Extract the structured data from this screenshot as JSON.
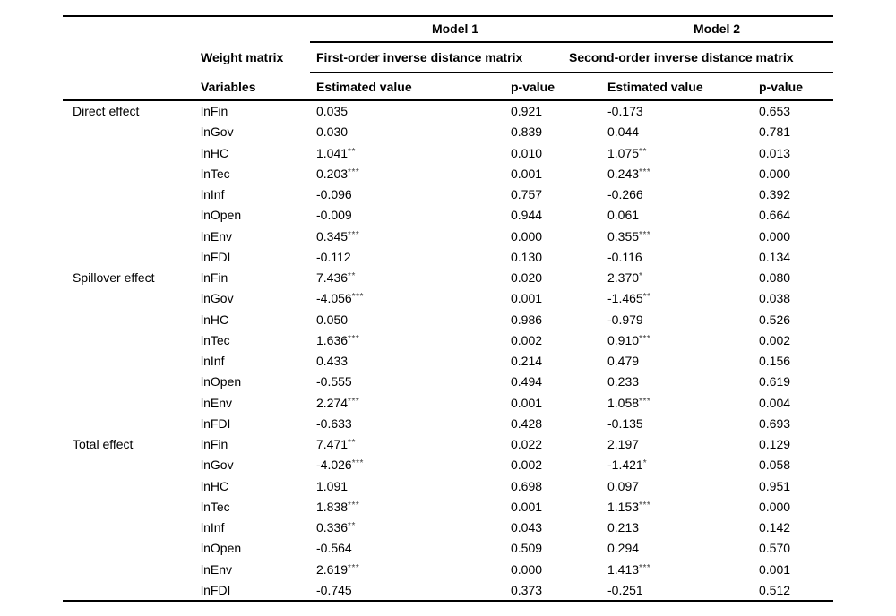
{
  "header": {
    "model1": "Model 1",
    "model2": "Model 2",
    "weight_matrix_label": "Weight matrix",
    "model1_matrix": "First-order inverse distance matrix",
    "model2_matrix": "Second-order inverse distance matrix",
    "variables_label": "Variables",
    "estimated_value_label_1": "Estimated value",
    "p_value_label_1": "p-value",
    "estimated_value_label_2": "Estimated value",
    "p_value_label_2": "p-value"
  },
  "colors": {
    "text": "#000000",
    "rule": "#000000",
    "background": "#ffffff"
  },
  "table": {
    "groups": [
      {
        "effect": "Direct effect",
        "rows": [
          {
            "variable": "lnFin",
            "m1_est": "0.035",
            "m1_stars": "",
            "m1_p": "0.921",
            "m2_est": "-0.173",
            "m2_stars": "",
            "m2_p": "0.653"
          },
          {
            "variable": "lnGov",
            "m1_est": "0.030",
            "m1_stars": "",
            "m1_p": "0.839",
            "m2_est": "0.044",
            "m2_stars": "",
            "m2_p": "0.781"
          },
          {
            "variable": "lnHC",
            "m1_est": "1.041",
            "m1_stars": "**",
            "m1_p": "0.010",
            "m2_est": "1.075",
            "m2_stars": "**",
            "m2_p": "0.013"
          },
          {
            "variable": "lnTec",
            "m1_est": "0.203",
            "m1_stars": "***",
            "m1_p": "0.001",
            "m2_est": "0.243",
            "m2_stars": "***",
            "m2_p": "0.000"
          },
          {
            "variable": "lnInf",
            "m1_est": "-0.096",
            "m1_stars": "",
            "m1_p": "0.757",
            "m2_est": "-0.266",
            "m2_stars": "",
            "m2_p": "0.392"
          },
          {
            "variable": "lnOpen",
            "m1_est": "-0.009",
            "m1_stars": "",
            "m1_p": "0.944",
            "m2_est": "0.061",
            "m2_stars": "",
            "m2_p": "0.664"
          },
          {
            "variable": "lnEnv",
            "m1_est": "0.345",
            "m1_stars": "***",
            "m1_p": "0.000",
            "m2_est": "0.355",
            "m2_stars": "***",
            "m2_p": "0.000"
          },
          {
            "variable": "lnFDI",
            "m1_est": "-0.112",
            "m1_stars": "",
            "m1_p": "0.130",
            "m2_est": "-0.116",
            "m2_stars": "",
            "m2_p": "0.134"
          }
        ]
      },
      {
        "effect": "Spillover effect",
        "rows": [
          {
            "variable": "lnFin",
            "m1_est": "7.436",
            "m1_stars": "**",
            "m1_p": "0.020",
            "m2_est": "2.370",
            "m2_stars": "*",
            "m2_p": "0.080"
          },
          {
            "variable": "lnGov",
            "m1_est": "-4.056",
            "m1_stars": "***",
            "m1_p": "0.001",
            "m2_est": "-1.465",
            "m2_stars": "**",
            "m2_p": "0.038"
          },
          {
            "variable": "lnHC",
            "m1_est": "0.050",
            "m1_stars": "",
            "m1_p": "0.986",
            "m2_est": "-0.979",
            "m2_stars": "",
            "m2_p": "0.526"
          },
          {
            "variable": "lnTec",
            "m1_est": "1.636",
            "m1_stars": "***",
            "m1_p": "0.002",
            "m2_est": "0.910",
            "m2_stars": "***",
            "m2_p": "0.002"
          },
          {
            "variable": "lnInf",
            "m1_est": "0.433",
            "m1_stars": "",
            "m1_p": "0.214",
            "m2_est": "0.479",
            "m2_stars": "",
            "m2_p": "0.156"
          },
          {
            "variable": "lnOpen",
            "m1_est": "-0.555",
            "m1_stars": "",
            "m1_p": "0.494",
            "m2_est": "0.233",
            "m2_stars": "",
            "m2_p": "0.619"
          },
          {
            "variable": "lnEnv",
            "m1_est": "2.274",
            "m1_stars": "***",
            "m1_p": "0.001",
            "m2_est": "1.058",
            "m2_stars": "***",
            "m2_p": "0.004"
          },
          {
            "variable": "lnFDI",
            "m1_est": "-0.633",
            "m1_stars": "",
            "m1_p": "0.428",
            "m2_est": "-0.135",
            "m2_stars": "",
            "m2_p": "0.693"
          }
        ]
      },
      {
        "effect": "Total effect",
        "rows": [
          {
            "variable": "lnFin",
            "m1_est": "7.471",
            "m1_stars": "**",
            "m1_p": "0.022",
            "m2_est": "2.197",
            "m2_stars": "",
            "m2_p": "0.129"
          },
          {
            "variable": "lnGov",
            "m1_est": "-4.026",
            "m1_stars": "***",
            "m1_p": "0.002",
            "m2_est": "-1.421",
            "m2_stars": "*",
            "m2_p": "0.058"
          },
          {
            "variable": "lnHC",
            "m1_est": "1.091",
            "m1_stars": "",
            "m1_p": "0.698",
            "m2_est": "0.097",
            "m2_stars": "",
            "m2_p": "0.951"
          },
          {
            "variable": "lnTec",
            "m1_est": "1.838",
            "m1_stars": "***",
            "m1_p": "0.001",
            "m2_est": "1.153",
            "m2_stars": "***",
            "m2_p": "0.000"
          },
          {
            "variable": "lnInf",
            "m1_est": "0.336",
            "m1_stars": "**",
            "m1_p": "0.043",
            "m2_est": "0.213",
            "m2_stars": "",
            "m2_p": "0.142"
          },
          {
            "variable": "lnOpen",
            "m1_est": "-0.564",
            "m1_stars": "",
            "m1_p": "0.509",
            "m2_est": "0.294",
            "m2_stars": "",
            "m2_p": "0.570"
          },
          {
            "variable": "lnEnv",
            "m1_est": "2.619",
            "m1_stars": "***",
            "m1_p": "0.000",
            "m2_est": "1.413",
            "m2_stars": "***",
            "m2_p": "0.001"
          },
          {
            "variable": "lnFDI",
            "m1_est": "-0.745",
            "m1_stars": "",
            "m1_p": "0.373",
            "m2_est": "-0.251",
            "m2_stars": "",
            "m2_p": "0.512"
          }
        ]
      }
    ]
  }
}
